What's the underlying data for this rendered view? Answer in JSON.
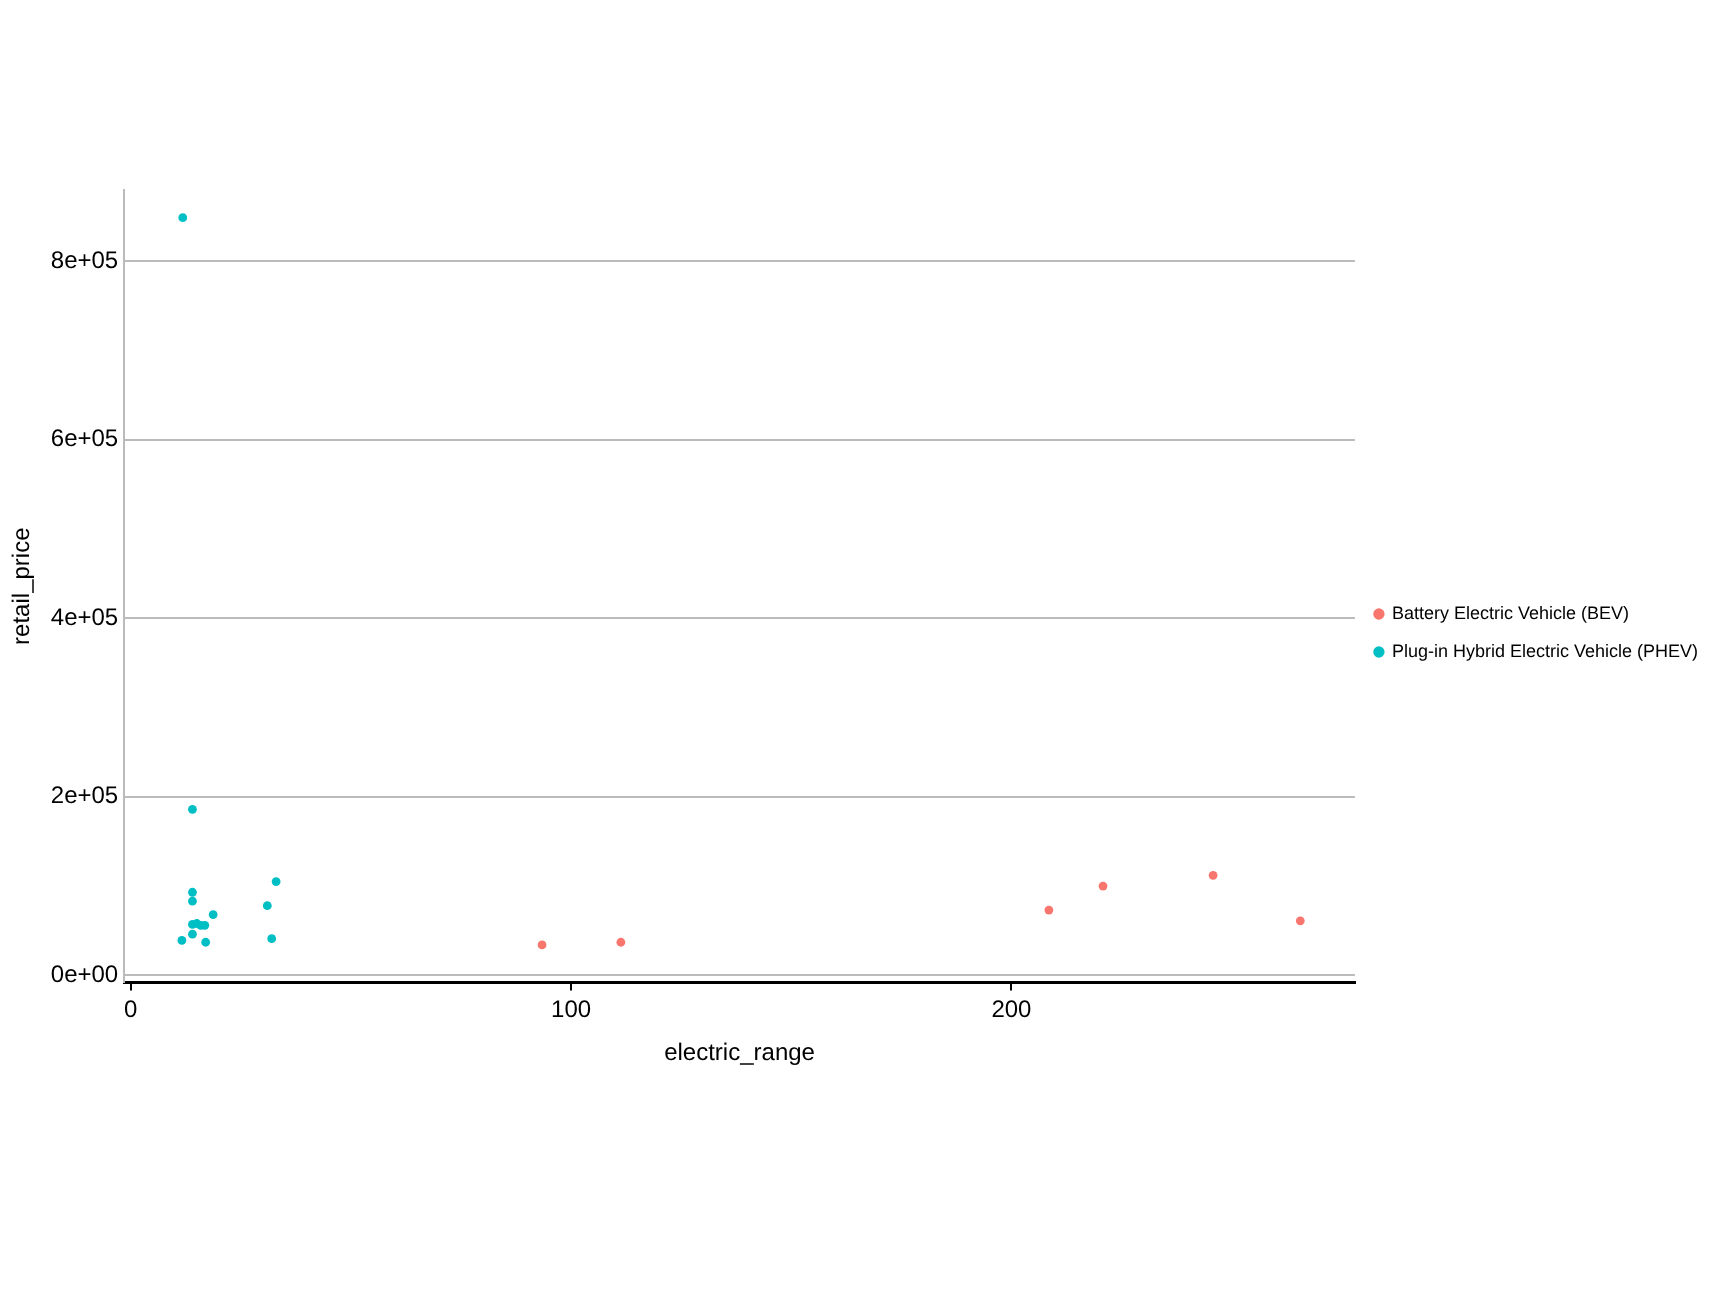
{
  "chart_data": {
    "type": "scatter",
    "xlabel": "electric_range",
    "ylabel": "retail_price",
    "xlim": [
      -1.5,
      278
    ],
    "ylim": [
      -8000,
      880000
    ],
    "xticks": [
      0,
      100,
      200
    ],
    "yticks": [
      {
        "value": 0,
        "label": "0e+00"
      },
      {
        "value": 200000,
        "label": "2e+05"
      },
      {
        "value": 400000,
        "label": "4e+05"
      },
      {
        "value": 600000,
        "label": "6e+05"
      },
      {
        "value": 800000,
        "label": "8e+05"
      }
    ],
    "grid": "y",
    "legend": "right",
    "marker": "circle",
    "series": [
      {
        "name": "Battery Electric Vehicle (BEV)",
        "color": "#f8766d",
        "x": [
          93.4,
          111.3,
          208.5,
          220.8,
          245.8,
          265.6
        ],
        "values": [
          34000,
          37000,
          73000,
          100000,
          112000,
          61000
        ]
      },
      {
        "name": "Plug-in Hybrid Electric Vehicle (PHEV)",
        "color": "#00bfc4",
        "x": [
          11.8,
          14,
          14,
          14,
          33,
          31,
          18.7,
          15,
          14,
          15.9,
          16.8,
          14,
          11.6,
          17,
          32
        ],
        "values": [
          849000,
          186000,
          93000,
          83000,
          105000,
          78000,
          68000,
          58000,
          57000,
          56000,
          56000,
          46000,
          39000,
          37000,
          41000
        ]
      }
    ]
  }
}
